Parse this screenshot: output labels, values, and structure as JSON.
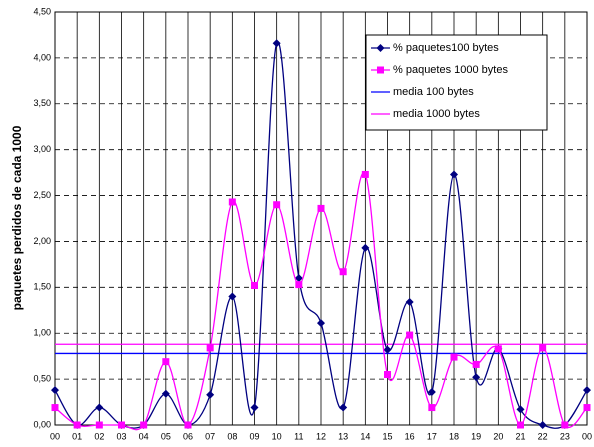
{
  "chart_data": {
    "type": "line",
    "y_label": "paquetes perdidos de cada 1000",
    "categories": [
      "00",
      "01",
      "02",
      "03",
      "04",
      "05",
      "06",
      "07",
      "08",
      "09",
      "10",
      "11",
      "12",
      "13",
      "14",
      "15",
      "16",
      "17",
      "18",
      "19",
      "20",
      "21",
      "22",
      "23",
      "00"
    ],
    "series": [
      {
        "name": "% paquetes100 bytes",
        "color": "#000080",
        "marker": "diamond",
        "values": [
          0.38,
          0,
          0.19,
          0,
          0,
          0.34,
          0,
          0.33,
          1.4,
          0.19,
          4.16,
          1.6,
          1.11,
          0.19,
          1.93,
          0.82,
          1.34,
          0.36,
          2.73,
          0.52,
          0.83,
          0.17,
          0,
          0,
          0.38
        ]
      },
      {
        "name": "% paquetes 1000 bytes",
        "color": "#ff00ff",
        "marker": "square",
        "values": [
          0.19,
          0,
          0,
          0,
          0,
          0.69,
          0,
          0.84,
          2.43,
          1.52,
          2.4,
          1.53,
          2.36,
          1.67,
          2.73,
          0.55,
          0.98,
          0.19,
          0.74,
          0.66,
          0.83,
          0,
          0.84,
          0,
          0.19
        ]
      },
      {
        "name": "media 100 bytes",
        "color": "#0000ff",
        "value": 0.78
      },
      {
        "name": "media 1000 bytes",
        "color": "#ff00ff",
        "value": 0.88
      }
    ],
    "ylim": [
      0,
      4.5
    ],
    "yticks": [
      {
        "value": 0,
        "label": "0,00"
      },
      {
        "value": 0.5,
        "label": "0,50"
      },
      {
        "value": 1,
        "label": "1,00"
      },
      {
        "value": 1.5,
        "label": "1,50"
      },
      {
        "value": 2,
        "label": "2,00"
      },
      {
        "value": 2.5,
        "label": "2,50"
      },
      {
        "value": 3,
        "label": "3,00"
      },
      {
        "value": 3.5,
        "label": "3,50"
      },
      {
        "value": 4,
        "label": "4,00"
      },
      {
        "value": 4.5,
        "label": "4,50"
      }
    ],
    "grid": true,
    "legend": "top-right"
  }
}
